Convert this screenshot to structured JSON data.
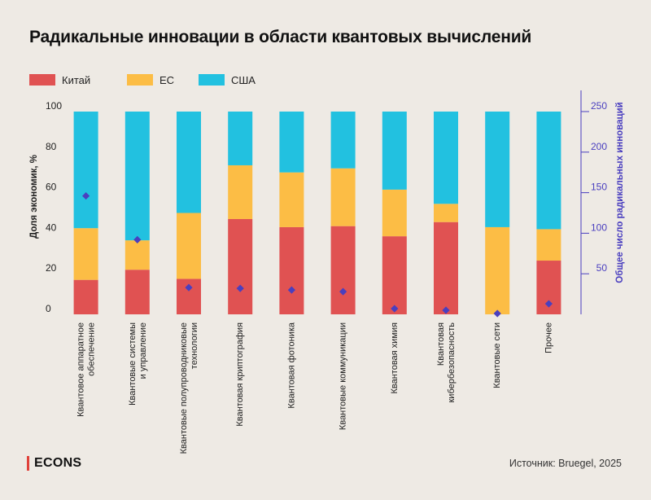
{
  "title": "Радикальные инновации в области квантовых вычислений",
  "legend": [
    {
      "label": "Китай",
      "color": "#e05252"
    },
    {
      "label": "ЕС",
      "color": "#fcbd45"
    },
    {
      "label": "США",
      "color": "#22c1e0"
    }
  ],
  "source": "Источник: Bruegel, 2025",
  "brand": "ECONS",
  "chart_data": {
    "type": "bar",
    "stacked": true,
    "categories": [
      "Квантовое аппаратное обеспечение",
      "Квантовые системы и управление",
      "Квантовые полупроводниковые технологии",
      "Квантовая криптография",
      "Квантовая фотоника",
      "Квантовые коммуникации",
      "Квантовая химия",
      "Квантовая кибербезопасность",
      "Квантовые сети",
      "Прочее"
    ],
    "category_lines": [
      [
        "Квантовое аппаратное",
        "обеспечение"
      ],
      [
        "Квантовые системы",
        "и управление"
      ],
      [
        "Квантовые полупроводниковые",
        "технологии"
      ],
      [
        "Квантовая криптография"
      ],
      [
        "Квантовая фотоника"
      ],
      [
        "Квантовые коммуникации"
      ],
      [
        "Квантовая химия"
      ],
      [
        "Квантовая",
        "кибербезопасность"
      ],
      [
        "Квантовые сети"
      ],
      [
        "Прочее"
      ]
    ],
    "series": [
      {
        "name": "Китай",
        "color": "#e05252",
        "values": [
          17,
          22,
          17.5,
          47,
          43,
          43.5,
          38.5,
          45.5,
          0,
          26.5
        ]
      },
      {
        "name": "ЕС",
        "color": "#fcbd45",
        "values": [
          25.5,
          14.5,
          32.5,
          26.5,
          27,
          28.5,
          23,
          9,
          43,
          15.5
        ]
      },
      {
        "name": "США",
        "color": "#22c1e0",
        "values": [
          57.5,
          63.5,
          50,
          26.5,
          30,
          28,
          38.5,
          45.5,
          57,
          58
        ]
      }
    ],
    "markers": {
      "color": "#4a3fbf",
      "axis": "right",
      "values": [
        146,
        92,
        33,
        32,
        30,
        28,
        7,
        5,
        1,
        13
      ]
    },
    "ylabel": "Доля экономик, %",
    "ylim": [
      0,
      100
    ],
    "yticks": [
      0,
      20,
      40,
      60,
      80,
      100
    ],
    "ylabel_right": "Общее число радикальных инноваций",
    "ylim_right": [
      0,
      250
    ],
    "yticks_right": [
      50,
      100,
      150,
      200,
      250
    ],
    "right_axis_color": "#4a3fbf"
  }
}
